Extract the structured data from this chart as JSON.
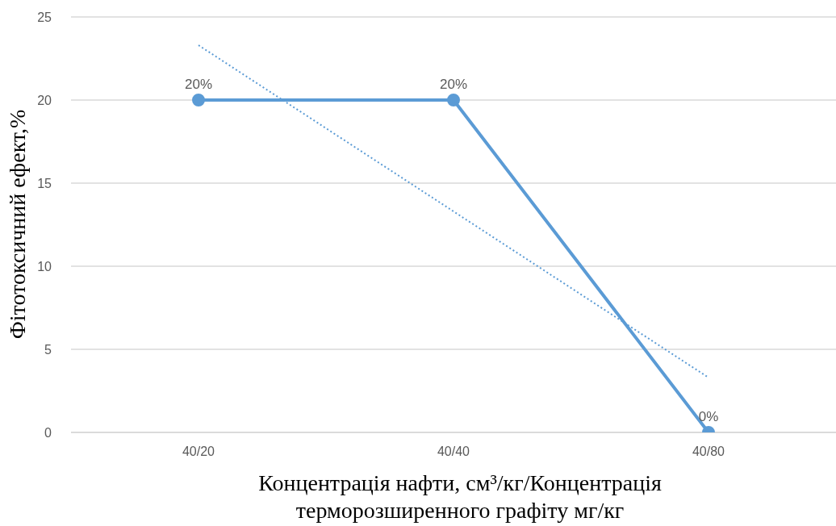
{
  "chart_data": {
    "type": "line",
    "ylabel": "Фітотоксичний ефект,%",
    "xlabel": "Концентрація нафти, см³/кг/Концентрація терморозширенного графіту мг/кг",
    "categories": [
      "40/20",
      "40/40",
      "40/80"
    ],
    "series": [
      {
        "color": "#5b9bd5",
        "values": [
          20,
          20,
          0
        ],
        "value_labels": [
          "20%",
          "20%",
          "0%"
        ],
        "marker": "circle",
        "line_style": "solid"
      },
      {
        "type": "line",
        "color": "#5b9bd5",
        "values": [
          23.3,
          13.3,
          3.3
        ],
        "marker": "none",
        "line_style": "dotted"
      }
    ],
    "ylim": [
      0,
      25
    ],
    "yticks": [
      0,
      5,
      10,
      15,
      20,
      25
    ],
    "grid": "y"
  }
}
